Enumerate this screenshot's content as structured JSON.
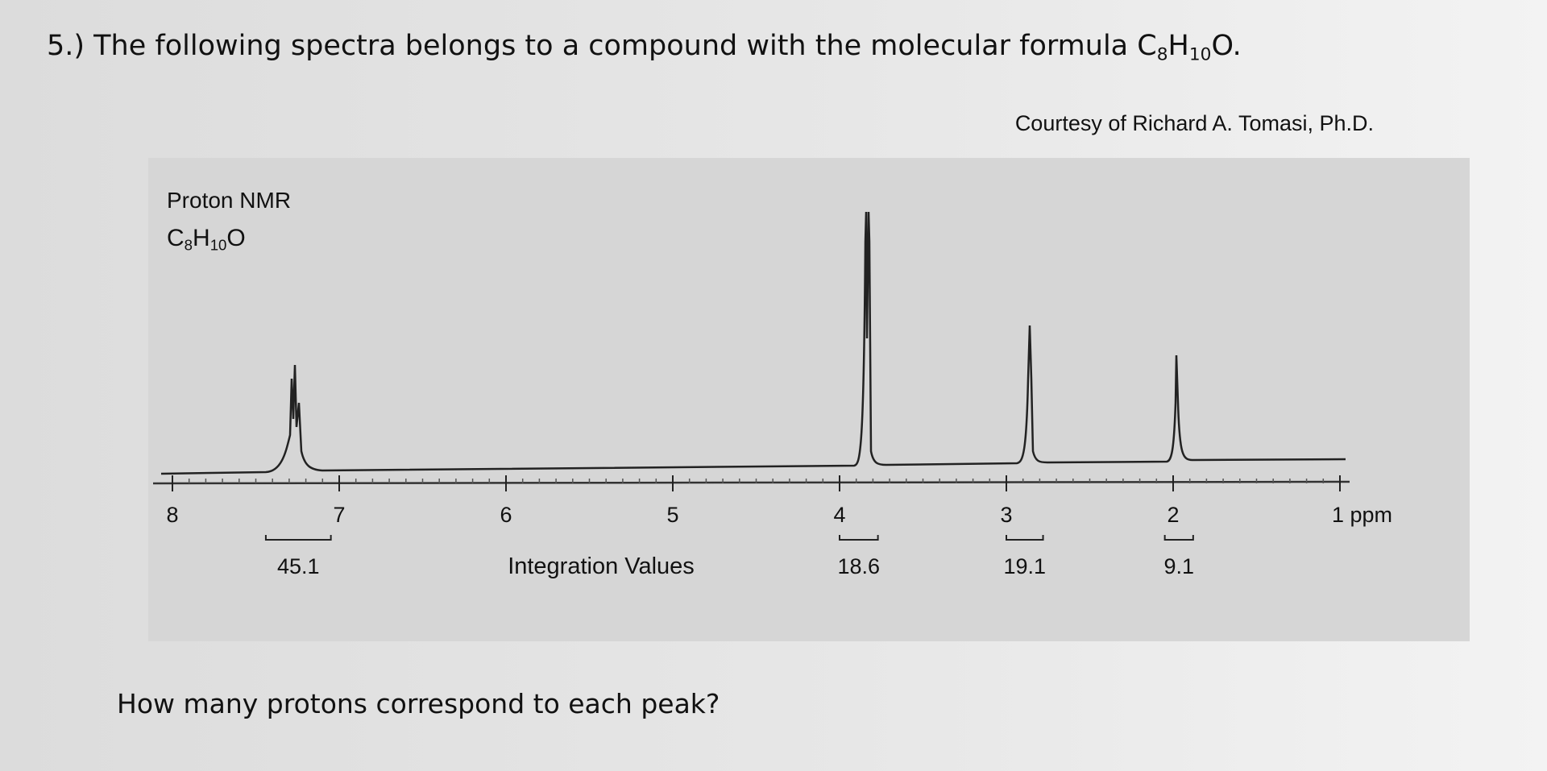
{
  "question": {
    "text": "5.) The following spectra belongs to a compound with the molecular formula ",
    "formula": [
      "C",
      "8",
      "H",
      "10",
      "O"
    ],
    "end": "."
  },
  "spectrum": {
    "credit": "Courtesy of Richard A. Tomasi, Ph.D.",
    "title": "Proton NMR",
    "formula": [
      "C",
      "8",
      "H",
      "10",
      "O"
    ],
    "xlim": [
      8,
      1
    ],
    "xticks": [
      8,
      7,
      6,
      5,
      4,
      3,
      2,
      {
        "value": 1,
        "label": "1 ppm"
      }
    ],
    "integration_label": "Integration Values",
    "integrals": [
      {
        "value": 45.1,
        "range": [
          7.44,
          7.05
        ]
      },
      {
        "value": 18.6,
        "range": [
          4.0,
          3.77
        ]
      },
      {
        "value": 19.1,
        "range": [
          3.0,
          2.78
        ]
      },
      {
        "value": 9.1,
        "range": [
          2.05,
          1.88
        ]
      }
    ]
  },
  "prompt": "How many protons correspond to each peak?"
}
